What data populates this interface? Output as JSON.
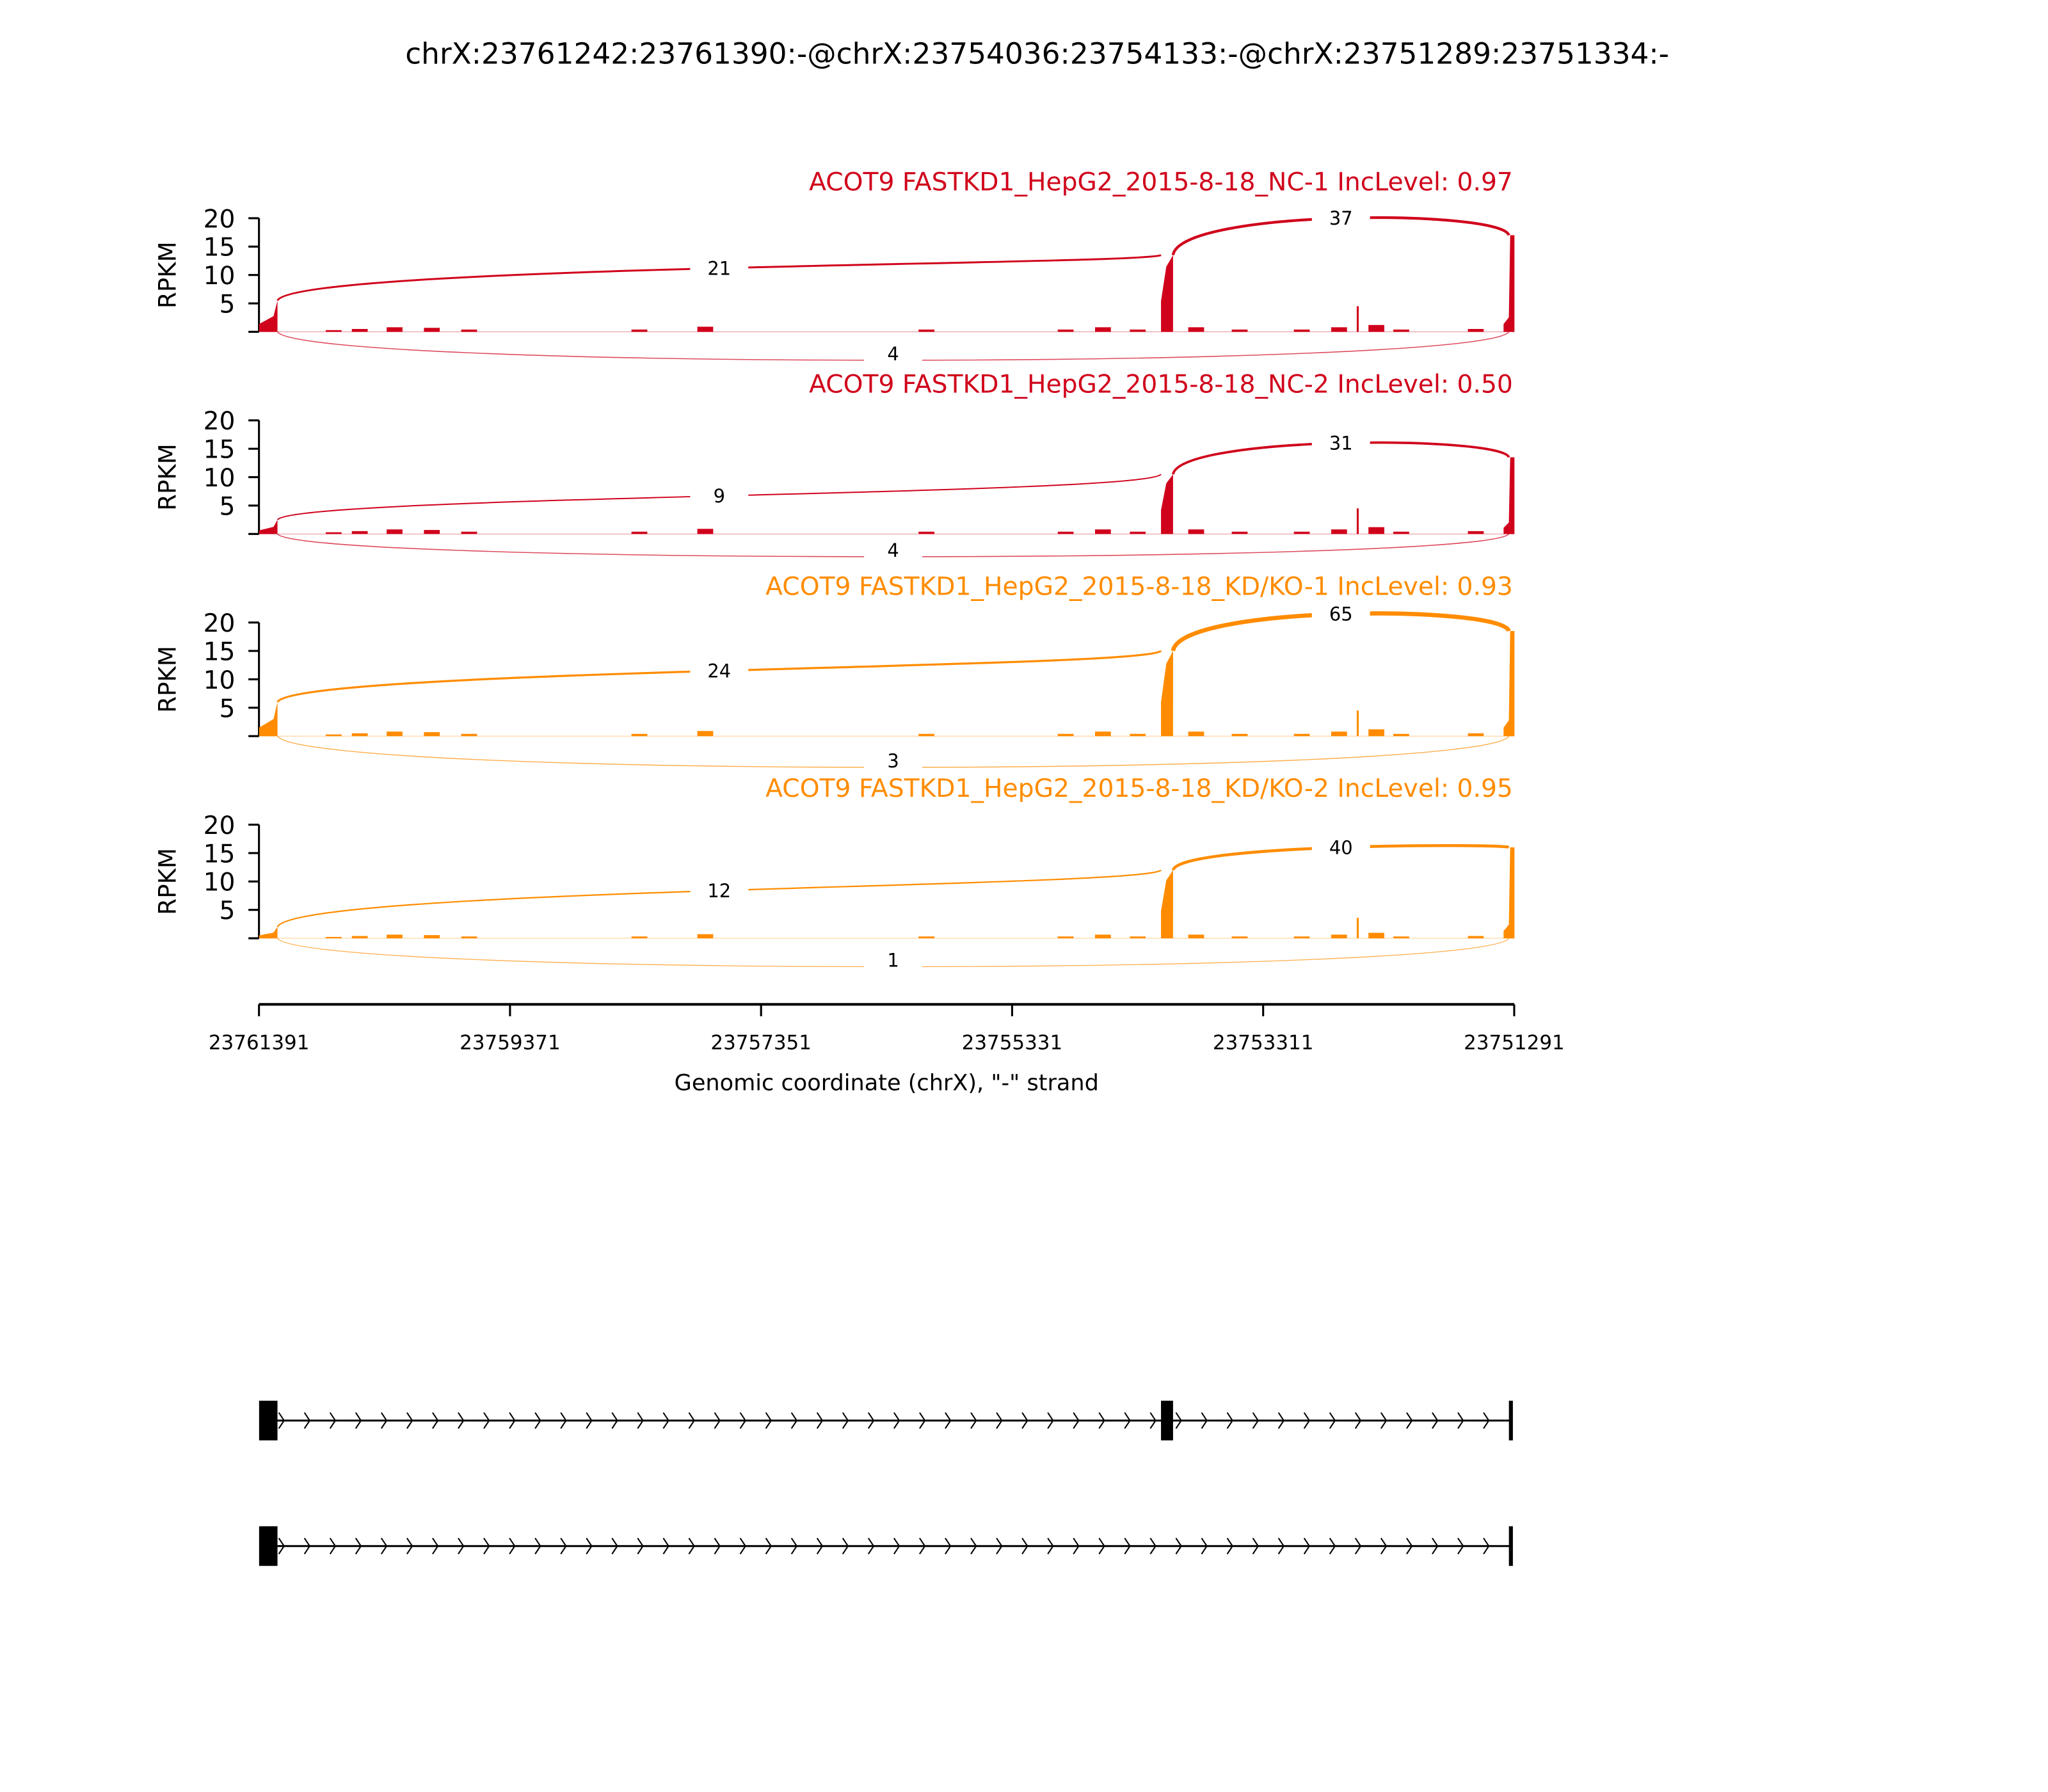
{
  "chart_data": {
    "type": "sashimi",
    "title": "chrX:23761242:23761390:-@chrX:23754036:23754133:-@chrX:23751289:23751334:-",
    "xlabel": "Genomic coordinate (chrX), \"-\" strand",
    "ylabel": "RPKM",
    "xlim": [
      23761391,
      23751291
    ],
    "x_ticks": [
      "23761391",
      "23759371",
      "23757351",
      "23755331",
      "23753311",
      "23751291"
    ],
    "ylim": [
      0,
      20
    ],
    "y_ticks": [
      "5",
      "10",
      "15",
      "20"
    ],
    "exons": [
      {
        "start": 23761390,
        "end": 23761242
      },
      {
        "start": 23754133,
        "end": 23754036
      },
      {
        "start": 23751334,
        "end": 23751289
      }
    ],
    "intron_coverage": [
      [
        23760790,
        0.3
      ],
      [
        23760580,
        0.5
      ],
      [
        23760300,
        0.8
      ],
      [
        23760000,
        0.7
      ],
      [
        23759700,
        0.4
      ],
      [
        23758330,
        0.4
      ],
      [
        23757800,
        0.9
      ],
      [
        23756020,
        0.4
      ],
      [
        23754900,
        0.4
      ],
      [
        23754600,
        0.8
      ],
      [
        23754320,
        0.4
      ],
      [
        23753850,
        0.8
      ],
      [
        23753500,
        0.4
      ],
      [
        23753000,
        0.4
      ],
      [
        23752700,
        0.8
      ],
      [
        23752550,
        4.5
      ],
      [
        23752400,
        1.2
      ],
      [
        23752200,
        0.4
      ],
      [
        23751600,
        0.5
      ]
    ],
    "panels": [
      {
        "label": "ACOT9 FASTKD1_HepG2_2015-8-18_NC-1 IncLevel: 0.97",
        "color": "#d0021b",
        "exon_rpkm": [
          5.5,
          13.5,
          17
        ],
        "junctions": [
          {
            "count": "21",
            "from_exon": 1,
            "to_exon": 2,
            "peak_rpkm": 11.2,
            "side": "above"
          },
          {
            "count": "37",
            "from_exon": 2,
            "to_exon": 3,
            "peak_rpkm": 20,
            "side": "above"
          },
          {
            "count": "4",
            "from_exon": 1,
            "to_exon": 3,
            "peak_rpkm": -5,
            "side": "below"
          }
        ]
      },
      {
        "label": "ACOT9 FASTKD1_HepG2_2015-8-18_NC-2 IncLevel: 0.50",
        "color": "#d0021b",
        "exon_rpkm": [
          2.5,
          10.5,
          13.5
        ],
        "junctions": [
          {
            "count": "9",
            "from_exon": 1,
            "to_exon": 2,
            "peak_rpkm": 6.7,
            "side": "above"
          },
          {
            "count": "31",
            "from_exon": 2,
            "to_exon": 3,
            "peak_rpkm": 16,
            "side": "above"
          },
          {
            "count": "4",
            "from_exon": 1,
            "to_exon": 3,
            "peak_rpkm": -4,
            "side": "below"
          }
        ]
      },
      {
        "label": "ACOT9 FASTKD1_HepG2_2015-8-18_KD/KO-1 IncLevel: 0.93",
        "color": "#ff8c00",
        "exon_rpkm": [
          6,
          15,
          18.5
        ],
        "junctions": [
          {
            "count": "24",
            "from_exon": 1,
            "to_exon": 2,
            "peak_rpkm": 11.5,
            "side": "above"
          },
          {
            "count": "65",
            "from_exon": 2,
            "to_exon": 3,
            "peak_rpkm": 21.5,
            "side": "above"
          },
          {
            "count": "3",
            "from_exon": 1,
            "to_exon": 3,
            "peak_rpkm": -5.5,
            "side": "below"
          }
        ]
      },
      {
        "label": "ACOT9 FASTKD1_HepG2_2015-8-18_KD/KO-2 IncLevel: 0.95",
        "color": "#ff8c00",
        "exon_rpkm": [
          2,
          12,
          16
        ],
        "junctions": [
          {
            "count": "12",
            "from_exon": 1,
            "to_exon": 2,
            "peak_rpkm": 8.4,
            "side": "above"
          },
          {
            "count": "40",
            "from_exon": 2,
            "to_exon": 3,
            "peak_rpkm": 16,
            "side": "above"
          },
          {
            "count": "1",
            "from_exon": 1,
            "to_exon": 3,
            "peak_rpkm": -5,
            "side": "below"
          }
        ]
      }
    ],
    "transcripts": [
      {
        "exons": [
          1,
          2,
          3
        ]
      },
      {
        "exons": [
          1,
          3
        ]
      }
    ],
    "grid": false
  }
}
